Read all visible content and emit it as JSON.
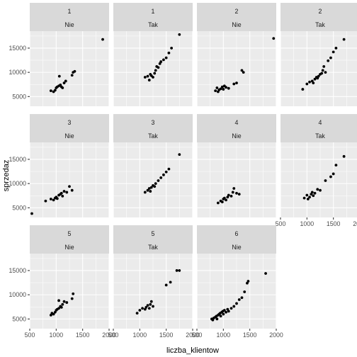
{
  "chart_data": {
    "type": "scatter",
    "xlabel": "liczba_klientow",
    "ylabel": "sprzedaz",
    "xlim": [
      500,
      2000
    ],
    "ylim": [
      3000,
      18500
    ],
    "x_ticks": [
      500,
      1000,
      1500,
      2000
    ],
    "x_tick_labels": [
      "500",
      "1000",
      "1500",
      "2000"
    ],
    "y_ticks": [
      5000,
      10000,
      15000
    ],
    "y_tick_labels": [
      "5000",
      "10000",
      "15000"
    ],
    "grid": true,
    "layout": {
      "rows": 3,
      "cols": 4
    },
    "panels": [
      {
        "strip1": "1",
        "strip2": "Nie",
        "points": [
          [
            900,
            6200
          ],
          [
            950,
            6000
          ],
          [
            980,
            6300
          ],
          [
            1000,
            6800
          ],
          [
            1020,
            7000
          ],
          [
            1050,
            7200
          ],
          [
            1080,
            7400
          ],
          [
            1100,
            7000
          ],
          [
            1120,
            6800
          ],
          [
            1060,
            9200
          ],
          [
            1150,
            7800
          ],
          [
            1180,
            8200
          ],
          [
            1300,
            9400
          ],
          [
            1320,
            10000
          ],
          [
            1350,
            10200
          ],
          [
            1880,
            16800
          ]
        ]
      },
      {
        "strip1": "1",
        "strip2": "Tak",
        "points": [
          [
            1100,
            9000
          ],
          [
            1150,
            9200
          ],
          [
            1180,
            8400
          ],
          [
            1200,
            9600
          ],
          [
            1220,
            9300
          ],
          [
            1250,
            9000
          ],
          [
            1280,
            9800
          ],
          [
            1300,
            10400
          ],
          [
            1320,
            11200
          ],
          [
            1350,
            11000
          ],
          [
            1380,
            11800
          ],
          [
            1400,
            12200
          ],
          [
            1450,
            12600
          ],
          [
            1500,
            13000
          ],
          [
            1550,
            14000
          ],
          [
            1600,
            15000
          ],
          [
            1750,
            17800
          ]
        ]
      },
      {
        "strip1": "2",
        "strip2": "Nie",
        "points": [
          [
            850,
            6200
          ],
          [
            880,
            6800
          ],
          [
            900,
            6000
          ],
          [
            920,
            6400
          ],
          [
            950,
            6600
          ],
          [
            980,
            7000
          ],
          [
            1000,
            6500
          ],
          [
            1020,
            7200
          ],
          [
            1050,
            6900
          ],
          [
            1100,
            6700
          ],
          [
            1200,
            7600
          ],
          [
            1250,
            7800
          ],
          [
            1350,
            10400
          ],
          [
            1380,
            10000
          ],
          [
            1950,
            17000
          ]
        ]
      },
      {
        "strip1": "2",
        "strip2": "Tak",
        "points": [
          [
            920,
            6500
          ],
          [
            1000,
            7600
          ],
          [
            1050,
            8000
          ],
          [
            1100,
            8200
          ],
          [
            1120,
            7800
          ],
          [
            1150,
            8600
          ],
          [
            1180,
            9000
          ],
          [
            1200,
            8800
          ],
          [
            1220,
            9200
          ],
          [
            1250,
            9600
          ],
          [
            1280,
            9800
          ],
          [
            1300,
            10400
          ],
          [
            1320,
            11200
          ],
          [
            1350,
            10000
          ],
          [
            1400,
            12400
          ],
          [
            1450,
            13000
          ],
          [
            1500,
            14200
          ],
          [
            1550,
            15000
          ],
          [
            1700,
            16800
          ]
        ]
      },
      {
        "strip1": "3",
        "strip2": "Nie",
        "points": [
          [
            540,
            3800
          ],
          [
            800,
            6400
          ],
          [
            900,
            6800
          ],
          [
            950,
            6600
          ],
          [
            980,
            7000
          ],
          [
            1000,
            7200
          ],
          [
            1020,
            6900
          ],
          [
            1050,
            7600
          ],
          [
            1080,
            7800
          ],
          [
            1100,
            8000
          ],
          [
            1120,
            7400
          ],
          [
            1150,
            8400
          ],
          [
            1200,
            8200
          ],
          [
            1250,
            9400
          ],
          [
            1300,
            8600
          ]
        ]
      },
      {
        "strip1": "3",
        "strip2": "Tak",
        "points": [
          [
            1100,
            8200
          ],
          [
            1150,
            8600
          ],
          [
            1180,
            9000
          ],
          [
            1200,
            8400
          ],
          [
            1220,
            9200
          ],
          [
            1250,
            9600
          ],
          [
            1280,
            9400
          ],
          [
            1300,
            10000
          ],
          [
            1350,
            10600
          ],
          [
            1400,
            11200
          ],
          [
            1450,
            11800
          ],
          [
            1500,
            12400
          ],
          [
            1550,
            13000
          ],
          [
            1750,
            16000
          ]
        ]
      },
      {
        "strip1": "4",
        "strip2": "Nie",
        "points": [
          [
            900,
            6000
          ],
          [
            950,
            6400
          ],
          [
            980,
            6200
          ],
          [
            1000,
            6800
          ],
          [
            1020,
            7000
          ],
          [
            1050,
            6600
          ],
          [
            1080,
            7200
          ],
          [
            1100,
            7600
          ],
          [
            1150,
            7400
          ],
          [
            1180,
            8200
          ],
          [
            1200,
            9000
          ],
          [
            1250,
            8000
          ],
          [
            1300,
            7800
          ]
        ]
      },
      {
        "strip1": "4",
        "strip2": "Tak",
        "points": [
          [
            950,
            7000
          ],
          [
            1000,
            7600
          ],
          [
            1020,
            6800
          ],
          [
            1050,
            7200
          ],
          [
            1080,
            7800
          ],
          [
            1100,
            8200
          ],
          [
            1120,
            7500
          ],
          [
            1150,
            8000
          ],
          [
            1200,
            8800
          ],
          [
            1250,
            8600
          ],
          [
            1350,
            10600
          ],
          [
            1450,
            11400
          ],
          [
            1500,
            12000
          ],
          [
            1550,
            13800
          ],
          [
            1700,
            15600
          ]
        ]
      },
      {
        "strip1": "5",
        "strip2": "Nie",
        "points": [
          [
            900,
            5800
          ],
          [
            920,
            6200
          ],
          [
            950,
            6000
          ],
          [
            980,
            6400
          ],
          [
            1000,
            6800
          ],
          [
            1020,
            7000
          ],
          [
            1050,
            7200
          ],
          [
            1080,
            7600
          ],
          [
            1100,
            7400
          ],
          [
            1120,
            8000
          ],
          [
            1050,
            8800
          ],
          [
            1150,
            8600
          ],
          [
            1200,
            8400
          ],
          [
            1300,
            9200
          ],
          [
            1320,
            10200
          ]
        ]
      },
      {
        "strip1": "5",
        "strip2": "Tak",
        "points": [
          [
            950,
            6200
          ],
          [
            1000,
            6800
          ],
          [
            1050,
            7200
          ],
          [
            1100,
            7000
          ],
          [
            1120,
            7400
          ],
          [
            1150,
            7800
          ],
          [
            1180,
            7200
          ],
          [
            1200,
            8000
          ],
          [
            1220,
            8600
          ],
          [
            1250,
            7600
          ],
          [
            1500,
            12000
          ],
          [
            1580,
            12600
          ],
          [
            1700,
            15000
          ],
          [
            1750,
            15000
          ]
        ]
      },
      {
        "strip1": "6",
        "strip2": "Nie",
        "points": [
          [
            780,
            5000
          ],
          [
            800,
            4800
          ],
          [
            820,
            5200
          ],
          [
            850,
            5400
          ],
          [
            870,
            5600
          ],
          [
            880,
            5000
          ],
          [
            900,
            5800
          ],
          [
            920,
            6000
          ],
          [
            940,
            6200
          ],
          [
            950,
            5600
          ],
          [
            970,
            6400
          ],
          [
            990,
            6600
          ],
          [
            1000,
            6000
          ],
          [
            1020,
            6800
          ],
          [
            1050,
            6400
          ],
          [
            1080,
            7000
          ],
          [
            1100,
            6600
          ],
          [
            1150,
            7200
          ],
          [
            1200,
            7600
          ],
          [
            1250,
            8200
          ],
          [
            1300,
            9000
          ],
          [
            1350,
            9400
          ],
          [
            1400,
            10600
          ],
          [
            1450,
            12400
          ],
          [
            1470,
            12800
          ],
          [
            1800,
            14400
          ]
        ]
      }
    ]
  }
}
